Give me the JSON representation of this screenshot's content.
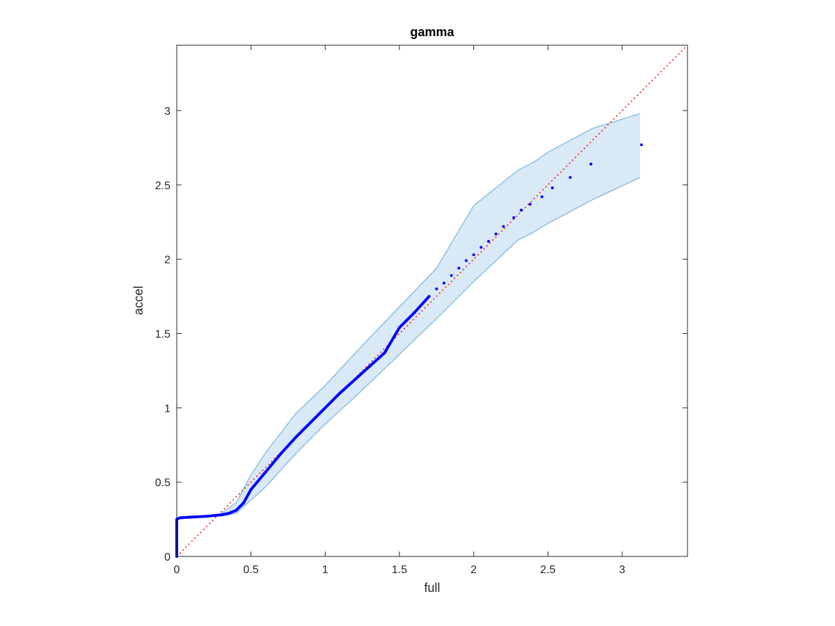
{
  "chart_data": {
    "type": "scatter",
    "title": "gamma",
    "xlabel": "full",
    "ylabel": "accel",
    "xlim": [
      0,
      3.44
    ],
    "ylim": [
      0,
      3.44
    ],
    "xticks": [
      0,
      0.5,
      1,
      1.5,
      2,
      2.5,
      3
    ],
    "yticks": [
      0,
      0.5,
      1,
      1.5,
      2,
      2.5,
      3
    ],
    "band": {
      "color": "#cfe3f2",
      "edge_color": "#8ec0e0",
      "x": [
        0.3,
        0.4,
        0.5,
        0.6,
        0.8,
        1.0,
        1.25,
        1.5,
        1.75,
        2.0,
        2.3,
        2.4,
        2.5,
        2.8,
        3.12
      ],
      "upper": [
        0.29,
        0.36,
        0.55,
        0.7,
        0.96,
        1.15,
        1.42,
        1.68,
        1.94,
        2.36,
        2.6,
        2.65,
        2.72,
        2.88,
        2.98
      ],
      "lower": [
        0.27,
        0.29,
        0.38,
        0.47,
        0.69,
        0.89,
        1.12,
        1.36,
        1.6,
        1.85,
        2.13,
        2.18,
        2.24,
        2.4,
        2.55
      ]
    },
    "reference": {
      "color": "#ff0000",
      "x": [
        0,
        3.44
      ],
      "y": [
        0,
        3.44
      ]
    },
    "points": {
      "color": "#0000ff",
      "x": [
        0,
        0,
        0,
        0.02,
        0.1,
        0.2,
        0.3,
        0.35,
        0.4,
        0.45,
        0.5,
        0.6,
        0.7,
        0.8,
        0.9,
        1.0,
        1.1,
        1.2,
        1.3,
        1.4,
        1.5,
        1.6,
        1.7,
        1.75,
        1.8,
        1.85,
        1.9,
        1.95,
        2.0,
        2.05,
        2.1,
        2.15,
        2.2,
        2.27,
        2.32,
        2.38,
        2.46,
        2.53,
        2.65,
        2.79,
        3.13
      ],
      "y": [
        0,
        0.13,
        0.25,
        0.26,
        0.265,
        0.27,
        0.28,
        0.29,
        0.31,
        0.36,
        0.45,
        0.57,
        0.69,
        0.8,
        0.9,
        1.0,
        1.1,
        1.19,
        1.28,
        1.37,
        1.54,
        1.64,
        1.75,
        1.8,
        1.84,
        1.89,
        1.94,
        1.99,
        2.03,
        2.08,
        2.12,
        2.17,
        2.22,
        2.28,
        2.33,
        2.37,
        2.42,
        2.48,
        2.55,
        2.64,
        2.77
      ]
    }
  }
}
